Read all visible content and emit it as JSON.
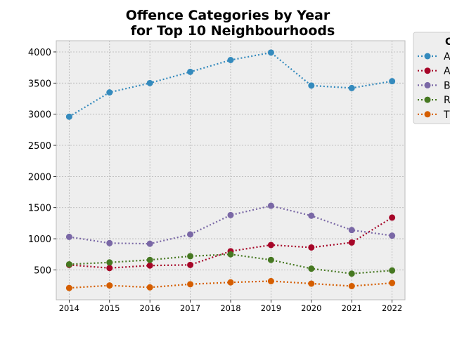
{
  "chart_data": {
    "type": "line",
    "title_line1": "Offence Categories by Year",
    "title_line2": "for Top 10 Neighbourhoods",
    "x": [
      2014,
      2015,
      2016,
      2017,
      2018,
      2019,
      2020,
      2021,
      2022
    ],
    "ylim": [
      20,
      4180
    ],
    "yticks": [
      500,
      1000,
      1500,
      2000,
      2500,
      3000,
      3500,
      4000
    ],
    "grid": true,
    "legend_position": "upper right, partially outside plot",
    "legend_title": "C",
    "series": [
      {
        "name": "A",
        "color": "#348abd",
        "values": [
          2960,
          3350,
          3500,
          3680,
          3870,
          3990,
          3460,
          3420,
          3530
        ]
      },
      {
        "name": "A",
        "color": "#a60628",
        "values": [
          580,
          530,
          570,
          580,
          800,
          900,
          860,
          940,
          1340
        ]
      },
      {
        "name": "B",
        "color": "#7a68a6",
        "values": [
          1030,
          930,
          920,
          1070,
          1380,
          1530,
          1370,
          1140,
          1050
        ]
      },
      {
        "name": "R",
        "color": "#467821",
        "values": [
          590,
          620,
          660,
          720,
          750,
          660,
          520,
          440,
          490
        ]
      },
      {
        "name": "T",
        "color": "#d55e00",
        "values": [
          210,
          250,
          220,
          270,
          300,
          320,
          280,
          240,
          290
        ]
      }
    ]
  }
}
